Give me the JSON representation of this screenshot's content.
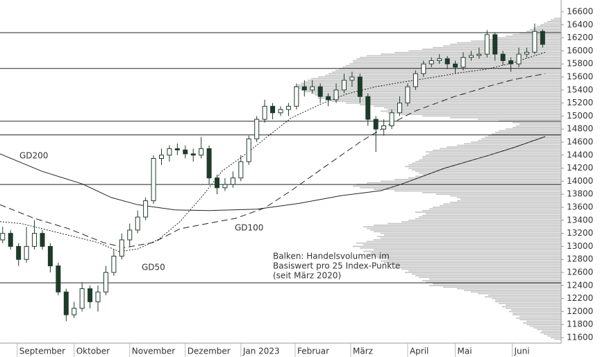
{
  "chart_data": {
    "type": "candlestick",
    "x": [
      1,
      4,
      7,
      10,
      13,
      16,
      19,
      22,
      25,
      28,
      31,
      34,
      37,
      40,
      43,
      46,
      49,
      52,
      55,
      58,
      61,
      64,
      67,
      70,
      73,
      76,
      79,
      82,
      85,
      88,
      91,
      94,
      97,
      100,
      103,
      106,
      109,
      112,
      115,
      118,
      121,
      124,
      127,
      130,
      133,
      136,
      139,
      142,
      145,
      148,
      151,
      154,
      157,
      160,
      163,
      166,
      169,
      172,
      175,
      178,
      181,
      184,
      187,
      190,
      193,
      196,
      199,
      202,
      205
    ],
    "open": [
      13100,
      13200,
      13000,
      12800,
      13000,
      13200,
      13000,
      12700,
      12300,
      11950,
      12050,
      12350,
      12150,
      12300,
      12600,
      12850,
      13100,
      13250,
      13450,
      13700,
      14350,
      14400,
      14500,
      14480,
      14420,
      14400,
      14500,
      14050,
      13900,
      13950,
      14050,
      14300,
      14650,
      14950,
      15150,
      15050,
      15100,
      15150,
      15450,
      15400,
      15450,
      15300,
      15250,
      15400,
      15550,
      15600,
      15300,
      14950,
      14800,
      14850,
      15050,
      15200,
      15450,
      15650,
      15800,
      15850,
      15880,
      15800,
      15750,
      15900,
      15930,
      15950,
      16250,
      15950,
      15850,
      15800,
      15950,
      15980,
      16300
    ],
    "high": [
      13300,
      13250,
      13050,
      13300,
      13400,
      13250,
      13050,
      12750,
      12350,
      12150,
      12450,
      12400,
      12400,
      12700,
      12950,
      13200,
      13350,
      13550,
      13750,
      14400,
      14500,
      14550,
      14580,
      14550,
      14500,
      14680,
      14550,
      14100,
      14050,
      14150,
      14400,
      14700,
      15000,
      15250,
      15200,
      15150,
      15200,
      15500,
      15550,
      15550,
      15500,
      15350,
      15500,
      15650,
      15680,
      15650,
      15350,
      15000,
      14950,
      15100,
      15300,
      15500,
      15700,
      15850,
      15900,
      15950,
      15920,
      15850,
      15980,
      16000,
      16050,
      16320,
      16280,
      16000,
      15900,
      16050,
      16050,
      16420,
      16330
    ],
    "low": [
      13050,
      12950,
      12700,
      12750,
      12950,
      12950,
      12600,
      12250,
      11850,
      11900,
      12000,
      12050,
      12000,
      12250,
      12550,
      12800,
      13000,
      13200,
      13400,
      13650,
      14250,
      14300,
      14400,
      14350,
      14300,
      14350,
      13950,
      13800,
      13850,
      13900,
      14000,
      14250,
      14600,
      14900,
      14950,
      15000,
      15000,
      15100,
      15300,
      15350,
      15200,
      15150,
      15200,
      15350,
      15450,
      15200,
      14850,
      14450,
      14700,
      14800,
      15000,
      15150,
      15400,
      15600,
      15750,
      15800,
      15720,
      15650,
      15700,
      15850,
      15880,
      15900,
      15850,
      15780,
      15680,
      15750,
      15900,
      15950,
      16050
    ],
    "close": [
      13200,
      13000,
      12800,
      13000,
      13200,
      13000,
      12700,
      12300,
      11950,
      12050,
      12350,
      12150,
      12300,
      12600,
      12850,
      13100,
      13250,
      13450,
      13700,
      14350,
      14400,
      14500,
      14480,
      14420,
      14400,
      14500,
      14050,
      13900,
      13950,
      14050,
      14300,
      14650,
      14950,
      15150,
      15050,
      15100,
      15150,
      15450,
      15400,
      15450,
      15300,
      15250,
      15400,
      15550,
      15600,
      15300,
      14950,
      14800,
      14850,
      15050,
      15200,
      15450,
      15650,
      15800,
      15850,
      15880,
      15800,
      15750,
      15900,
      15930,
      15950,
      16250,
      15950,
      15850,
      15800,
      15950,
      15980,
      16300,
      16100
    ],
    "xlim": [
      0,
      212
    ],
    "xticks": [
      {
        "value": 6.5,
        "label": "September"
      },
      {
        "value": 28,
        "label": "Oktober"
      },
      {
        "value": 49,
        "label": "November"
      },
      {
        "value": 70,
        "label": "Dezember"
      },
      {
        "value": 91,
        "label": "Jan 2023"
      },
      {
        "value": 111.5,
        "label": "Februar"
      },
      {
        "value": 132.5,
        "label": "März"
      },
      {
        "value": 154,
        "label": "April"
      },
      {
        "value": 172,
        "label": "Mai"
      },
      {
        "value": 193.5,
        "label": "Juni"
      }
    ],
    "ylim": [
      11515,
      16781
    ],
    "yticks": [
      11600,
      11800,
      12000,
      12200,
      12400,
      12600,
      12800,
      13000,
      13200,
      13400,
      13600,
      13800,
      14000,
      14200,
      14400,
      14600,
      14800,
      15000,
      15200,
      15400,
      15600,
      15800,
      16000,
      16200,
      16400,
      16600
    ],
    "up_color": "#ffffff",
    "down_color": "#1e3b2a",
    "moving_averages": [
      {
        "name": "GD200",
        "dash": "none",
        "x": [
          0,
          16,
          31,
          42,
          52,
          66,
          79,
          97,
          113,
          129,
          144,
          152,
          168,
          184,
          194,
          206
        ],
        "values": [
          14420,
          14150,
          13960,
          13750,
          13640,
          13560,
          13550,
          13570,
          13660,
          13780,
          13855,
          13960,
          14200,
          14390,
          14515,
          14685
        ]
      },
      {
        "name": "GD100",
        "dash": "9 5",
        "x": [
          0,
          13,
          26,
          39,
          47,
          58,
          68,
          79,
          89,
          100,
          110,
          123,
          136,
          147,
          157,
          171,
          184,
          194,
          206
        ],
        "values": [
          13640,
          13430,
          13270,
          13060,
          12980,
          13060,
          13270,
          13355,
          13430,
          13590,
          13855,
          14230,
          14600,
          14870,
          15080,
          15290,
          15450,
          15560,
          15650
        ]
      },
      {
        "name": "GD50",
        "dash": "2 2",
        "x": [
          0,
          8,
          16,
          26,
          37,
          45,
          52,
          60,
          68,
          76,
          84,
          92,
          100,
          110,
          121,
          131,
          142,
          152,
          163,
          173,
          184,
          194,
          206
        ],
        "values": [
          13380,
          13350,
          13270,
          13170,
          13060,
          12920,
          12960,
          13110,
          13380,
          13750,
          14160,
          14390,
          14650,
          14970,
          15180,
          15340,
          15450,
          15520,
          15590,
          15660,
          15720,
          15820,
          15980
        ]
      }
    ],
    "levels": [
      16280,
      15730,
      14920,
      14710,
      13950,
      12440
    ],
    "volume_profile": {
      "start": 11575,
      "step": 25,
      "xlim": [
        0,
        808
      ],
      "color": "#c4c4c4",
      "values": [
        10,
        15,
        20,
        25,
        30,
        28,
        35,
        40,
        45,
        50,
        55,
        50,
        60,
        65,
        60,
        70,
        70,
        75,
        72,
        80,
        85,
        80,
        90,
        95,
        95,
        100,
        110,
        105,
        120,
        130,
        140,
        150,
        170,
        190,
        185,
        195,
        200,
        190,
        205,
        210,
        215,
        225,
        220,
        230,
        240,
        235,
        250,
        255,
        260,
        250,
        265,
        270,
        280,
        275,
        285,
        270,
        290,
        300,
        285,
        295,
        280,
        270,
        260,
        265,
        255,
        260,
        270,
        275,
        280,
        285,
        270,
        250,
        230,
        220,
        210,
        205,
        200,
        195,
        210,
        200,
        190,
        185,
        175,
        170,
        160,
        150,
        145,
        150,
        160,
        180,
        200,
        240,
        270,
        290,
        300,
        295,
        280,
        260,
        240,
        220,
        210,
        200,
        205,
        210,
        215,
        220,
        225,
        220,
        215,
        210,
        205,
        200,
        200,
        195,
        190,
        195,
        185,
        175,
        165,
        150,
        140,
        130,
        120,
        115,
        110,
        105,
        100,
        95,
        90,
        80,
        70,
        65,
        60,
        70,
        90,
        120,
        160,
        200,
        230,
        250,
        260,
        250,
        255,
        270,
        290,
        310,
        330,
        340,
        350,
        345,
        355,
        360,
        370,
        375,
        380,
        385,
        380,
        375,
        370,
        365,
        360,
        350,
        340,
        335,
        330,
        325,
        320,
        315,
        310,
        305,
        300,
        300,
        295,
        290,
        280,
        260,
        240,
        220,
        200,
        185,
        170,
        160,
        150,
        130,
        110,
        95,
        80,
        70,
        60,
        50,
        45,
        40,
        35,
        30,
        25,
        20,
        15,
        10
      ]
    },
    "annotation": [
      "Balken: Handelsvolumen im",
      "Basiswert pro 25 Index-Punkte",
      "(seit März 2020)"
    ]
  }
}
